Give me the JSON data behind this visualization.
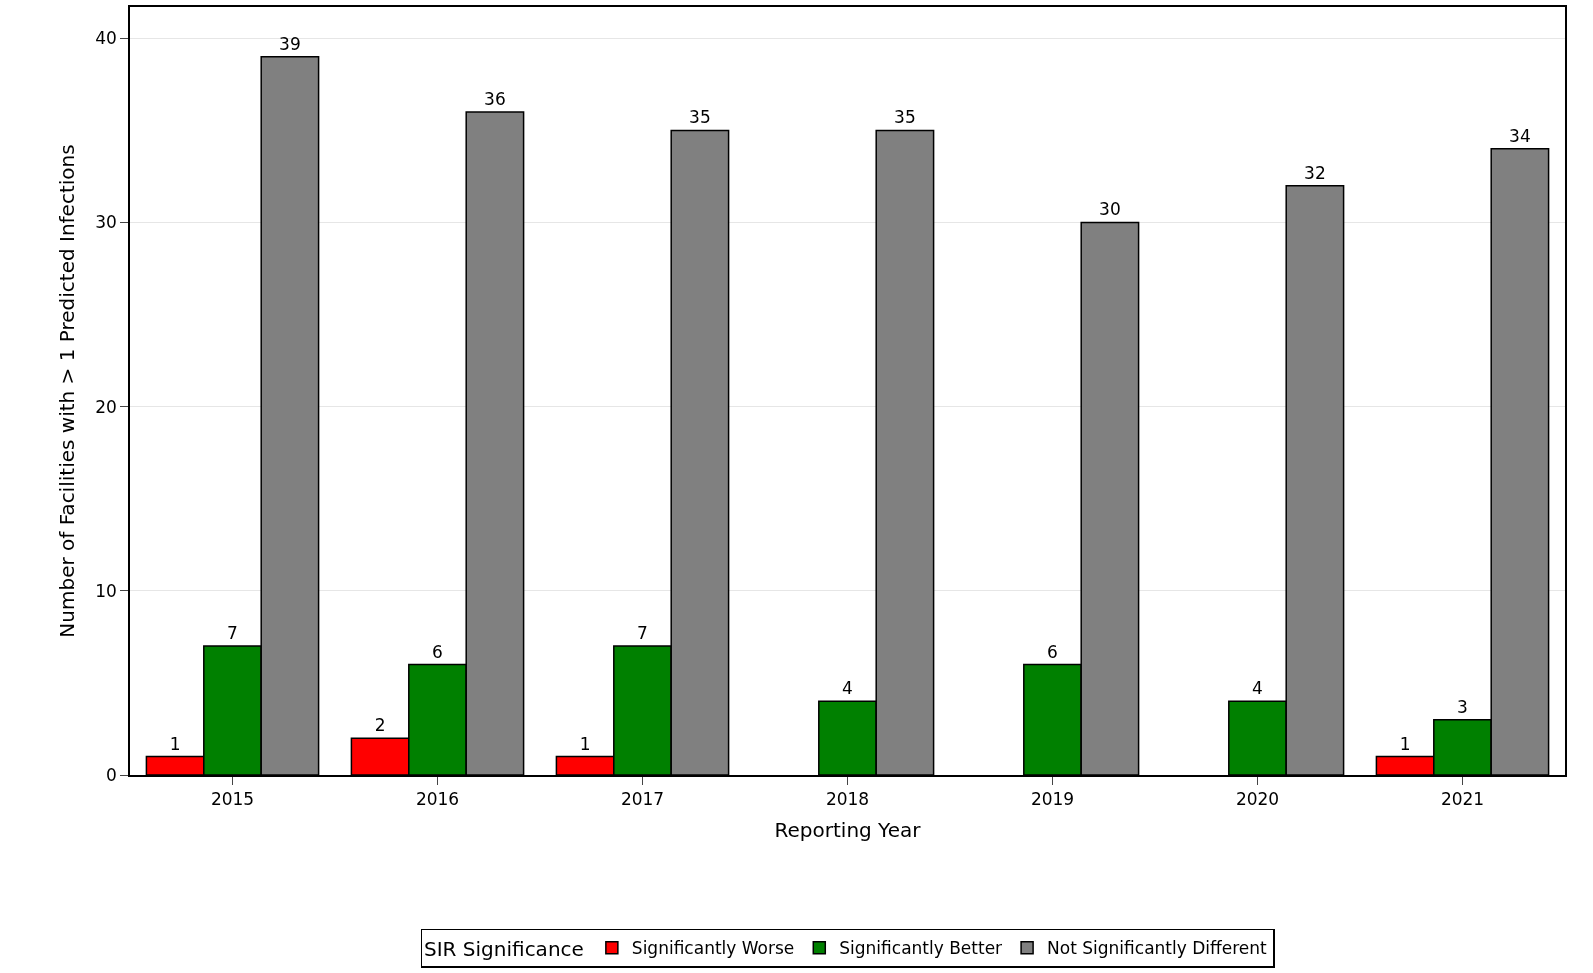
{
  "chart_data": {
    "type": "bar",
    "xlabel": "Reporting Year",
    "ylabel": "Number of Facilities with > 1 Predicted Infections",
    "legend_title": "SIR Significance",
    "categories": [
      "2015",
      "2016",
      "2017",
      "2018",
      "2019",
      "2020",
      "2021"
    ],
    "series": [
      {
        "name": "Significantly Worse",
        "color": "#ff0000",
        "values": [
          1,
          2,
          1,
          null,
          null,
          null,
          1
        ]
      },
      {
        "name": "Significantly Better",
        "color": "#008000",
        "values": [
          7,
          6,
          7,
          4,
          6,
          4,
          3
        ]
      },
      {
        "name": "Not Significantly Different",
        "color": "#808080",
        "values": [
          39,
          36,
          35,
          35,
          30,
          32,
          34
        ]
      }
    ],
    "ylim": [
      0,
      41.7
    ],
    "yticks": [
      0,
      10,
      20,
      30,
      40
    ],
    "grid": "y",
    "legend": "bottom",
    "data_labels": true
  }
}
